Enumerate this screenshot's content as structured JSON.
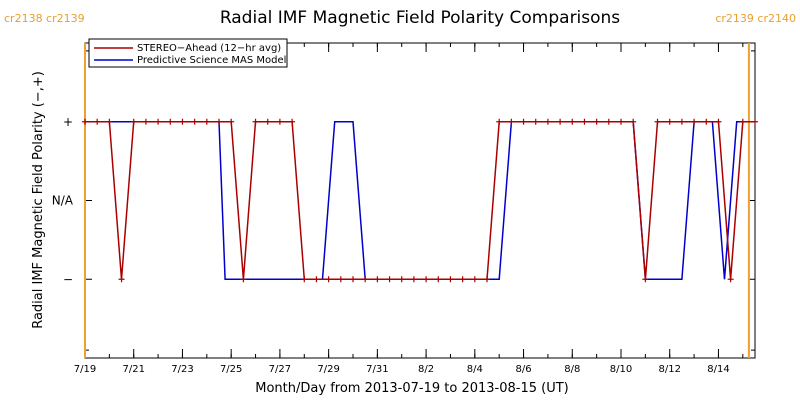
{
  "chart_data": {
    "type": "line",
    "title": "Radial IMF Magnetic Field Polarity Comparisons",
    "xlabel": "Month/Day from 2013-07-19 to 2013-08-15 (UT)",
    "ylabel": "Radial IMF Magnetic Field Polarity (−,+)",
    "xlim": [
      "2013-07-19",
      "2013-08-15 12:00"
    ],
    "ylim": [
      -2,
      2
    ],
    "x_ticks": [
      {
        "date": "2013-07-19",
        "label": "7/19"
      },
      {
        "date": "2013-07-21",
        "label": "7/21"
      },
      {
        "date": "2013-07-23",
        "label": "7/23"
      },
      {
        "date": "2013-07-25",
        "label": "7/25"
      },
      {
        "date": "2013-07-27",
        "label": "7/27"
      },
      {
        "date": "2013-07-29",
        "label": "7/29"
      },
      {
        "date": "2013-07-31",
        "label": "7/31"
      },
      {
        "date": "2013-08-02",
        "label": "8/2"
      },
      {
        "date": "2013-08-04",
        "label": "8/4"
      },
      {
        "date": "2013-08-06",
        "label": "8/6"
      },
      {
        "date": "2013-08-08",
        "label": "8/8"
      },
      {
        "date": "2013-08-10",
        "label": "8/10"
      },
      {
        "date": "2013-08-12",
        "label": "8/12"
      },
      {
        "date": "2013-08-14",
        "label": "8/14"
      }
    ],
    "y_ticks": [
      {
        "value": 1,
        "label": "+"
      },
      {
        "value": 0,
        "label": "N/A"
      },
      {
        "value": -1,
        "label": "−"
      }
    ],
    "carrington_markers": [
      {
        "date": "2013-07-19",
        "label": "cr2138 cr2139"
      },
      {
        "date": "2013-08-15 06:00",
        "label": "cr2139 cr2140"
      }
    ],
    "legend": {
      "position": "top-left",
      "entries": [
        {
          "name": "STEREO−Ahead (12−hr avg)",
          "color": "#aa0000"
        },
        {
          "name": "Predictive Science MAS Model",
          "color": "#0000cc"
        }
      ]
    },
    "series": [
      {
        "name": "STEREO−Ahead (12−hr avg)",
        "color": "#aa0000",
        "points": [
          [
            "2013-07-19 00:00",
            1
          ],
          [
            "2013-07-19 12:00",
            1
          ],
          [
            "2013-07-20 00:00",
            1
          ],
          [
            "2013-07-20 12:00",
            -1
          ],
          [
            "2013-07-21 00:00",
            1
          ],
          [
            "2013-07-21 12:00",
            1
          ],
          [
            "2013-07-22 00:00",
            1
          ],
          [
            "2013-07-22 12:00",
            1
          ],
          [
            "2013-07-23 00:00",
            1
          ],
          [
            "2013-07-23 12:00",
            1
          ],
          [
            "2013-07-24 00:00",
            1
          ],
          [
            "2013-07-24 12:00",
            1
          ],
          [
            "2013-07-25 00:00",
            1
          ],
          [
            "2013-07-25 12:00",
            -1
          ],
          [
            "2013-07-26 00:00",
            1
          ],
          [
            "2013-07-26 12:00",
            1
          ],
          [
            "2013-07-27 00:00",
            1
          ],
          [
            "2013-07-27 12:00",
            1
          ],
          [
            "2013-07-28 00:00",
            -1
          ],
          [
            "2013-07-28 12:00",
            -1
          ],
          [
            "2013-07-29 00:00",
            -1
          ],
          [
            "2013-07-29 12:00",
            -1
          ],
          [
            "2013-07-30 00:00",
            -1
          ],
          [
            "2013-07-30 12:00",
            -1
          ],
          [
            "2013-07-31 00:00",
            -1
          ],
          [
            "2013-07-31 12:00",
            -1
          ],
          [
            "2013-08-01 00:00",
            -1
          ],
          [
            "2013-08-01 12:00",
            -1
          ],
          [
            "2013-08-02 00:00",
            -1
          ],
          [
            "2013-08-02 12:00",
            -1
          ],
          [
            "2013-08-03 00:00",
            -1
          ],
          [
            "2013-08-03 12:00",
            -1
          ],
          [
            "2013-08-04 00:00",
            -1
          ],
          [
            "2013-08-04 12:00",
            -1
          ],
          [
            "2013-08-05 00:00",
            1
          ],
          [
            "2013-08-05 12:00",
            1
          ],
          [
            "2013-08-06 00:00",
            1
          ],
          [
            "2013-08-06 12:00",
            1
          ],
          [
            "2013-08-07 00:00",
            1
          ],
          [
            "2013-08-07 12:00",
            1
          ],
          [
            "2013-08-08 00:00",
            1
          ],
          [
            "2013-08-08 12:00",
            1
          ],
          [
            "2013-08-09 00:00",
            1
          ],
          [
            "2013-08-09 12:00",
            1
          ],
          [
            "2013-08-10 00:00",
            1
          ],
          [
            "2013-08-10 12:00",
            1
          ],
          [
            "2013-08-11 00:00",
            -1
          ],
          [
            "2013-08-11 12:00",
            1
          ],
          [
            "2013-08-12 00:00",
            1
          ],
          [
            "2013-08-12 12:00",
            1
          ],
          [
            "2013-08-13 00:00",
            1
          ],
          [
            "2013-08-13 12:00",
            1
          ],
          [
            "2013-08-14 00:00",
            1
          ],
          [
            "2013-08-14 12:00",
            -1
          ],
          [
            "2013-08-15 00:00",
            1
          ],
          [
            "2013-08-15 12:00",
            1
          ]
        ]
      },
      {
        "name": "Predictive Science MAS Model",
        "color": "#0000cc",
        "points": [
          [
            "2013-07-19 00:00",
            1
          ],
          [
            "2013-07-24 12:00",
            1
          ],
          [
            "2013-07-24 18:00",
            -1
          ],
          [
            "2013-07-28 18:00",
            -1
          ],
          [
            "2013-07-29 06:00",
            1
          ],
          [
            "2013-07-30 00:00",
            1
          ],
          [
            "2013-07-30 12:00",
            -1
          ],
          [
            "2013-08-05 00:00",
            -1
          ],
          [
            "2013-08-05 12:00",
            1
          ],
          [
            "2013-08-10 12:00",
            1
          ],
          [
            "2013-08-11 00:00",
            -1
          ],
          [
            "2013-08-12 12:00",
            -1
          ],
          [
            "2013-08-13 00:00",
            1
          ],
          [
            "2013-08-13 18:00",
            1
          ],
          [
            "2013-08-14 06:00",
            -1
          ],
          [
            "2013-08-14 18:00",
            1
          ],
          [
            "2013-08-15 12:00",
            1
          ]
        ]
      }
    ]
  }
}
